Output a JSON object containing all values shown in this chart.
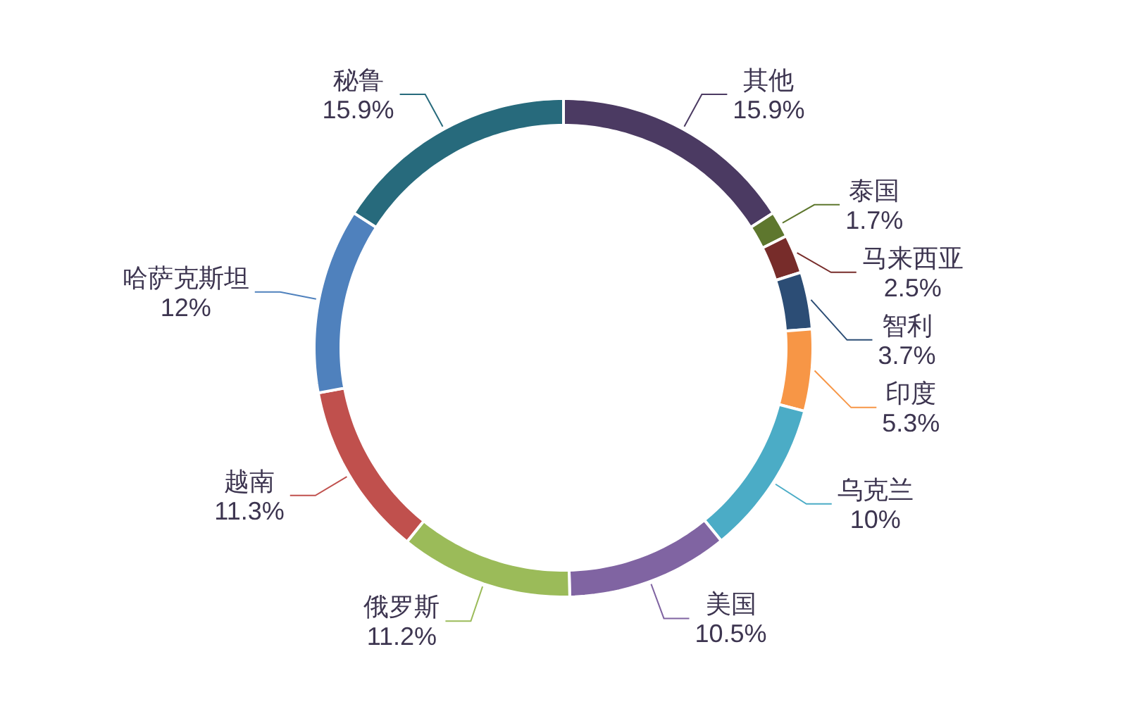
{
  "chart_data": {
    "type": "donut",
    "value_labels": [
      "15.9%",
      "1.7%",
      "2.5%",
      "3.7%",
      "5.3%",
      "10%",
      "10.5%",
      "11.2%",
      "11.3%",
      "12%",
      "15.9%"
    ],
    "categories": [
      "其他",
      "泰国",
      "马来西亚",
      "智利",
      "印度",
      "乌克兰",
      "美国",
      "俄罗斯",
      "越南",
      "哈萨克斯坦",
      "秘鲁"
    ],
    "values": [
      15.9,
      1.7,
      2.5,
      3.7,
      5.3,
      10,
      10.5,
      11.2,
      11.3,
      12,
      15.9
    ],
    "colors": [
      "#4b3a62",
      "#5e772e",
      "#772c2a",
      "#2c4d75",
      "#f79646",
      "#4bacc6",
      "#8064a2",
      "#9bbb59",
      "#c0504d",
      "#4f81bd",
      "#276a7c"
    ]
  }
}
